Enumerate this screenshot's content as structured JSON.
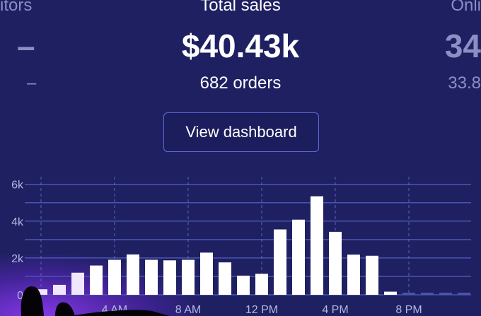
{
  "stats": {
    "left": {
      "label": "itors",
      "value": "–",
      "sub": "–"
    },
    "center": {
      "label": "Total sales",
      "value": "$40.43k",
      "sub": "682 orders"
    },
    "right": {
      "label": "Onli",
      "value": "34",
      "sub": "33.8"
    }
  },
  "button": {
    "label": "View dashboard"
  },
  "colors": {
    "background": "#1e2062",
    "bar": "#ffffff",
    "grid": "#4a55b0",
    "accent": "#5f6bd6"
  },
  "chart_data": {
    "type": "bar",
    "x": [
      0,
      1,
      2,
      3,
      4,
      5,
      6,
      7,
      8,
      9,
      10,
      11,
      12,
      13,
      14,
      15,
      16,
      17,
      18,
      19,
      20,
      21,
      22,
      23
    ],
    "values": [
      0.3,
      0.54,
      1.2,
      1.59,
      1.9,
      2.19,
      1.9,
      1.87,
      1.9,
      2.29,
      1.76,
      1.04,
      1.14,
      3.55,
      4.08,
      5.35,
      3.42,
      2.18,
      2.12,
      0.17,
      0,
      0,
      0,
      0
    ],
    "unit": "k",
    "ylim": [
      0,
      6
    ],
    "yticks": [
      {
        "v": 0,
        "label": "0"
      },
      {
        "v": 2,
        "label": "2k"
      },
      {
        "v": 4,
        "label": "4k"
      },
      {
        "v": 6,
        "label": "6k"
      }
    ],
    "xticks": [
      {
        "h": 4,
        "label": "4 AM"
      },
      {
        "h": 8,
        "label": "8 AM"
      },
      {
        "h": 12,
        "label": "12 PM"
      },
      {
        "h": 16,
        "label": "4 PM"
      },
      {
        "h": 20,
        "label": "8 PM"
      }
    ],
    "grid": true
  }
}
